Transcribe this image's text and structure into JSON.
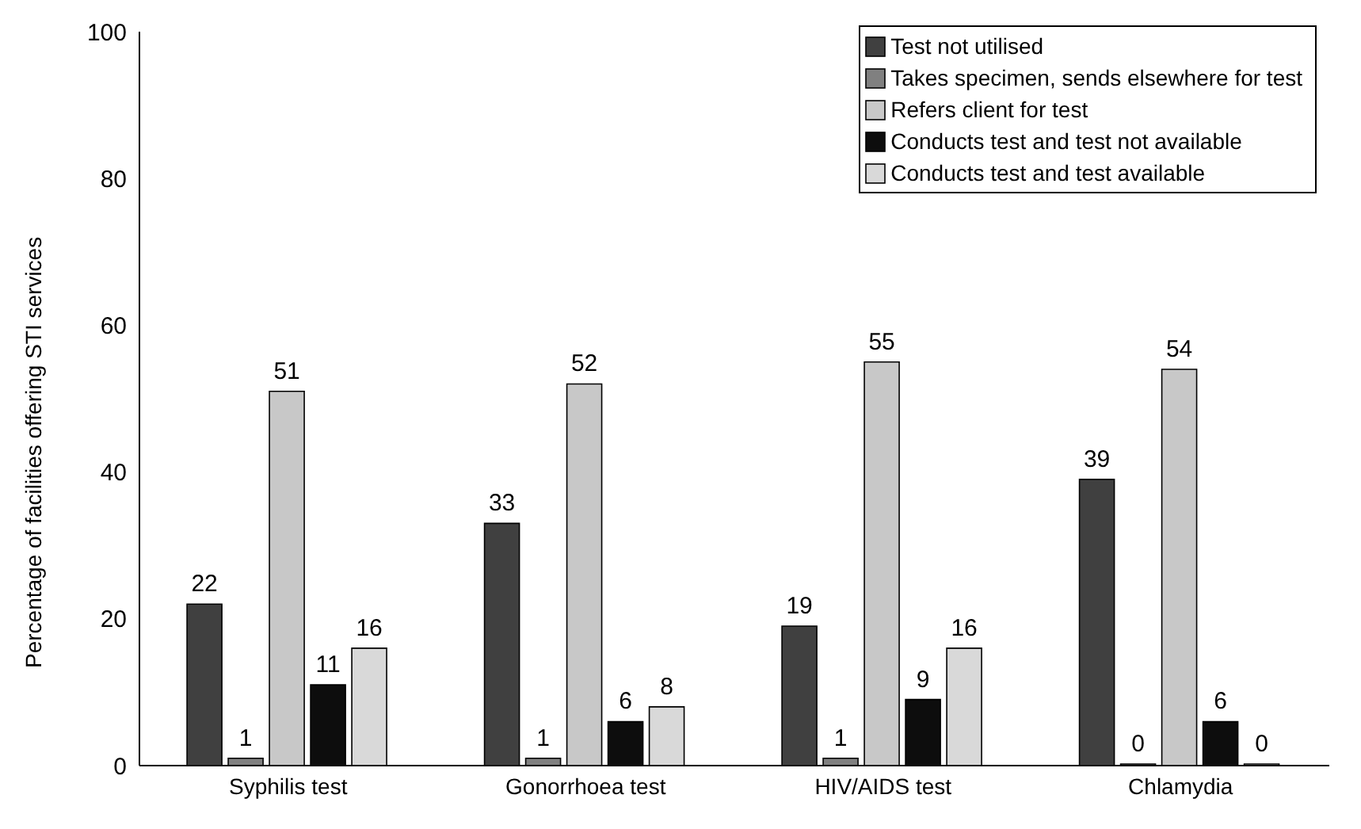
{
  "chart_data": {
    "type": "bar",
    "ylabel": "Percentage of facilities offering STI services",
    "categories": [
      "Syphilis test",
      "Gonorrhoea test",
      "HIV/AIDS test",
      "Chlamydia"
    ],
    "series": [
      {
        "name": "Test not utilised",
        "color": "#404040",
        "values": [
          22,
          33,
          19,
          39
        ]
      },
      {
        "name": "Takes specimen, sends elsewhere for test",
        "color": "#808080",
        "values": [
          1,
          1,
          1,
          0
        ]
      },
      {
        "name": "Refers client for test",
        "color": "#c8c8c8",
        "values": [
          51,
          52,
          55,
          54
        ]
      },
      {
        "name": "Conducts test and test not available",
        "color": "#0d0d0d",
        "values": [
          11,
          6,
          9,
          6
        ]
      },
      {
        "name": "Conducts test and test available",
        "color": "#d9d9d9",
        "values": [
          16,
          8,
          16,
          0
        ]
      }
    ],
    "ylim": [
      0,
      100
    ],
    "yticks": [
      0,
      20,
      40,
      60,
      80,
      100
    ],
    "grid": false,
    "legend": "top right",
    "data_labels": true
  }
}
